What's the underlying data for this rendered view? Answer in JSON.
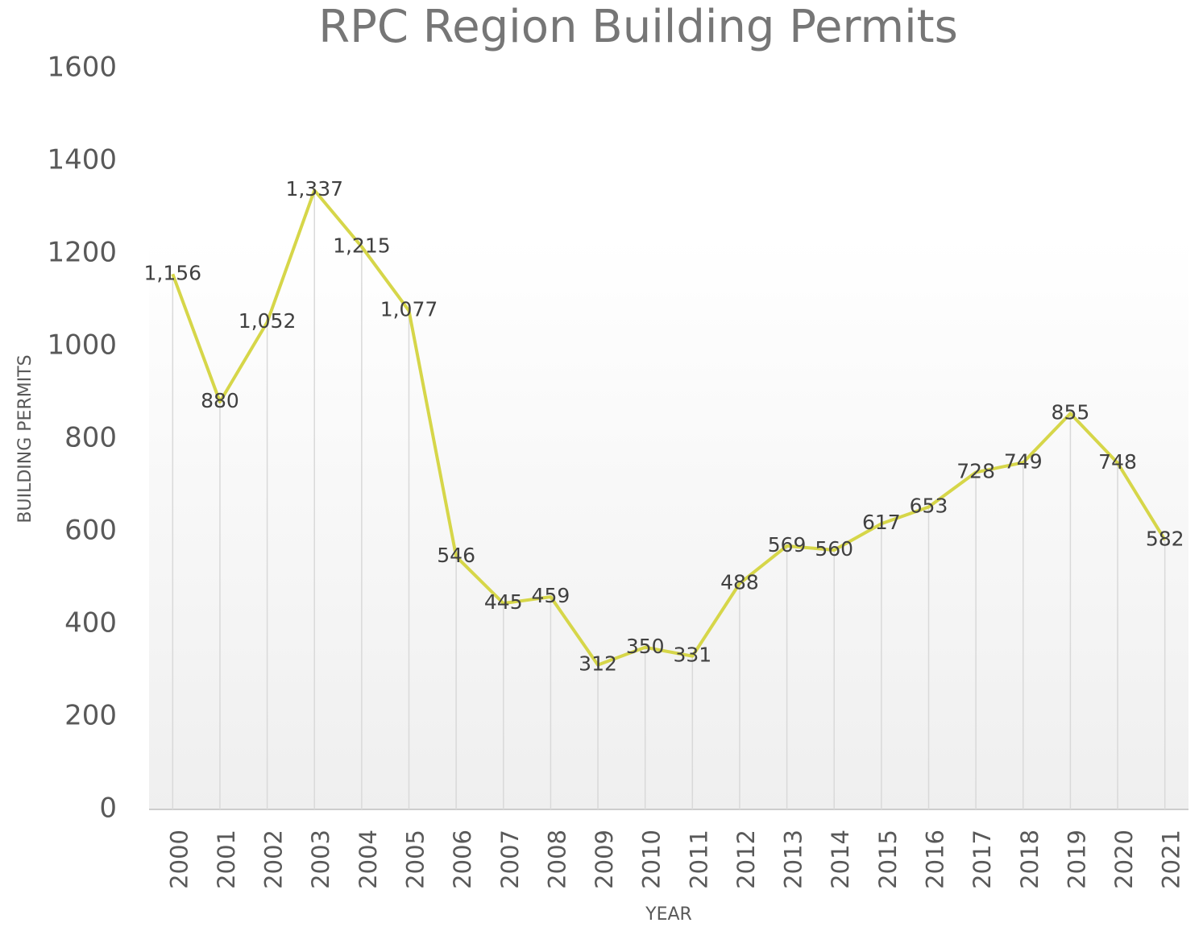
{
  "chart_data": {
    "type": "line",
    "title": "RPC Region Building Permits",
    "x_label": "YEAR",
    "y_label": "BUILDING PERMITS",
    "categories": [
      "2000",
      "2001",
      "2002",
      "2003",
      "2004",
      "2005",
      "2006",
      "2007",
      "2008",
      "2009",
      "2010",
      "2011",
      "2012",
      "2013",
      "2014",
      "2015",
      "2016",
      "2017",
      "2018",
      "2019",
      "2020",
      "2021"
    ],
    "series": [
      {
        "name": "Building Permits",
        "color": "#d6d649",
        "values": [
          1156,
          880,
          1052,
          1337,
          1215,
          1077,
          546,
          445,
          459,
          312,
          350,
          331,
          488,
          569,
          560,
          617,
          653,
          728,
          749,
          855,
          748,
          582
        ],
        "value_labels": [
          "1,156",
          "880",
          "1,052",
          "1,337",
          "1,215",
          "1,077",
          "546",
          "445",
          "459",
          "312",
          "350",
          "331",
          "488",
          "569",
          "560",
          "617",
          "653",
          "728",
          "749",
          "855",
          "748",
          "582"
        ]
      }
    ],
    "ylim": [
      0,
      1600
    ],
    "yticks": [
      0,
      200,
      400,
      600,
      800,
      1000,
      1200,
      1400,
      1600
    ],
    "grid": false
  }
}
